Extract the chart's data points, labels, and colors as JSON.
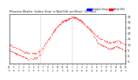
{
  "bg_color": "#ffffff",
  "plot_bg_color": "#ffffff",
  "vline_color": "#999999",
  "vline_positions": [
    0.265,
    0.535
  ],
  "legend_blue_label": "Outdoor Temp",
  "legend_red_label": "Wind Chill",
  "ylim": [
    -7,
    37
  ],
  "ytick_values": [
    -5,
    0,
    5,
    10,
    15,
    20,
    25,
    30,
    35
  ],
  "xlim": [
    0,
    1
  ],
  "title_left": "Milwaukee Weather  Outdoor Temp",
  "title_right": "vs Wind Chill  per Minute  (24 Hours)",
  "dot_color": "red",
  "dot_size": 0.8,
  "seed": 17,
  "n_points": 480,
  "temp_base": [
    10,
    9.5,
    9,
    8.5,
    8,
    7.5,
    7,
    6.5,
    6,
    5.5,
    5,
    4.5,
    4,
    3.5,
    3,
    2.8,
    2.5,
    2.3,
    2.2,
    2.2,
    2.0,
    2.0,
    2.2,
    2.5,
    3.0,
    3.5,
    4.5,
    5.5,
    7,
    8.5,
    10,
    11.5,
    13,
    14.5,
    16,
    17.5,
    19,
    20.5,
    22,
    23.5,
    25,
    26,
    27,
    28,
    29,
    30,
    30.5,
    31,
    31.5,
    32,
    32.5,
    33,
    33.5,
    34,
    34,
    34,
    33.8,
    33.5,
    33,
    32.5,
    32,
    31,
    30,
    29,
    28,
    27,
    26,
    25,
    24,
    23,
    22,
    21,
    20,
    19,
    18,
    17,
    16,
    15.5,
    15,
    14.5,
    14,
    13.5,
    13,
    12.5,
    12,
    11.5,
    11.5,
    11.5,
    12,
    12.5,
    13,
    13,
    13,
    13,
    12.5,
    12,
    11.5,
    11,
    10.5,
    10
  ],
  "wind_base": [
    5,
    4.5,
    4,
    3.5,
    3,
    2.5,
    2,
    1.5,
    1,
    0.5,
    0,
    -0.5,
    -1,
    -1.5,
    -2,
    -2.3,
    -2.5,
    -2.5,
    -2.5,
    -2.5,
    -2.5,
    -2.3,
    -2,
    -1.5,
    -1,
    -0.5,
    0.5,
    1.5,
    3,
    5,
    7,
    9,
    11,
    13,
    15,
    17,
    19,
    20.5,
    22,
    23.5,
    25,
    26,
    27,
    28,
    29,
    30,
    30.5,
    31,
    31.5,
    32,
    32.5,
    33,
    33.5,
    34,
    34,
    34,
    33.8,
    33.5,
    33,
    32.5,
    32,
    31,
    30,
    29,
    28,
    27,
    26,
    25,
    24,
    23,
    22,
    20,
    18,
    16,
    14,
    12,
    11,
    10.5,
    10,
    9.5,
    9,
    8.5,
    8,
    7.5,
    7,
    6.5,
    6.5,
    6.5,
    7,
    7.5,
    8,
    8,
    8,
    7.5,
    7,
    6.5,
    6,
    5.5,
    5,
    4.5
  ]
}
